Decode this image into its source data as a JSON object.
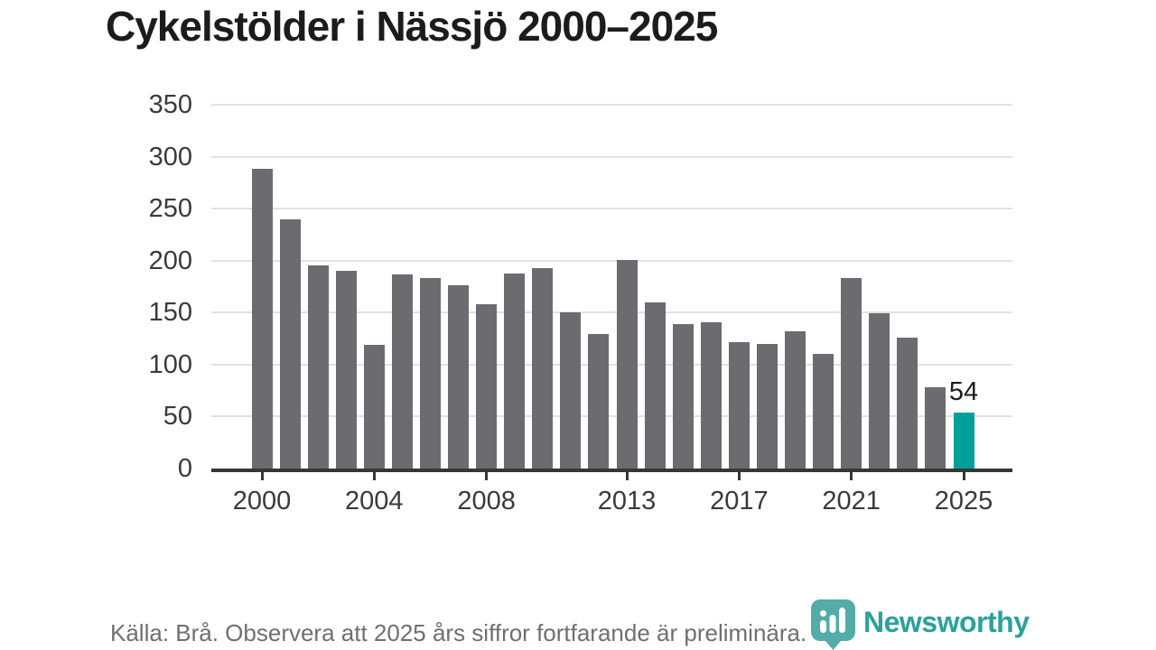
{
  "title": "Cykelstölder i Nässjö 2000–2025",
  "footer": {
    "source_note": "Källa: Brå. Observera att 2025 års siffror fortfarande är preliminära."
  },
  "branding": {
    "logo_text": "Newsworthy",
    "logo_icon": "bar-chart-pin-icon",
    "wordmark_color": "#2aa19c",
    "icon_color": "#4aa8a2"
  },
  "chart_data": {
    "type": "bar",
    "title": "Cykelstölder i Nässjö 2000–2025",
    "x": [
      2000,
      2001,
      2002,
      2003,
      2004,
      2005,
      2006,
      2007,
      2008,
      2009,
      2010,
      2011,
      2012,
      2013,
      2014,
      2015,
      2016,
      2017,
      2018,
      2019,
      2020,
      2021,
      2022,
      2023,
      2024,
      2025
    ],
    "values": [
      288,
      240,
      195,
      190,
      119,
      187,
      183,
      176,
      158,
      188,
      193,
      150,
      129,
      201,
      160,
      139,
      141,
      122,
      120,
      132,
      110,
      183,
      149,
      126,
      78,
      54
    ],
    "highlight_x": 2025,
    "highlight_value": 54,
    "data_label": {
      "x": 2025,
      "text": "54"
    },
    "ylim": [
      0,
      350
    ],
    "y_ticks": [
      0,
      50,
      100,
      150,
      200,
      250,
      300,
      350
    ],
    "x_tick_labels": [
      2000,
      2004,
      2008,
      2013,
      2017,
      2021,
      2025
    ],
    "grid": true,
    "legend": "none",
    "colors": {
      "bar": "#6b6b70",
      "highlight": "#00a09a",
      "gridline": "#e2e2e2",
      "axis": "#363636",
      "tick_label": "#3a3a3a"
    }
  }
}
